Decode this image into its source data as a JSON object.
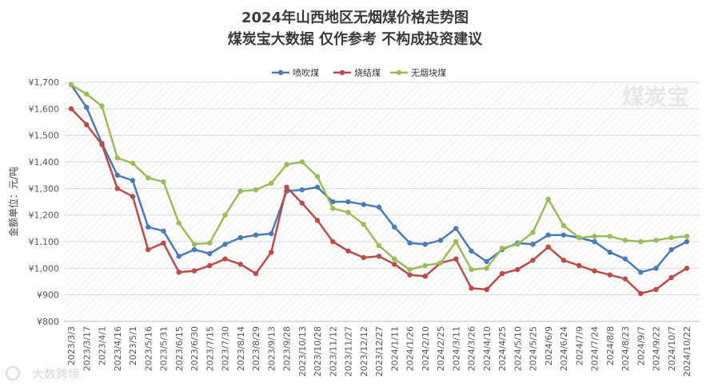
{
  "chart_data": {
    "type": "line",
    "title": "2024年山西地区无烟煤价格走势图",
    "subtitle": "煤炭宝大数据 仅作参考 不构成投资建议",
    "ylabel": "金额单位：元/吨",
    "ylim": [
      800,
      1700
    ],
    "yticks": [
      800,
      900,
      1000,
      1100,
      1200,
      1300,
      1400,
      1500,
      1600,
      1700
    ],
    "ytick_labels": [
      "¥800",
      "¥900",
      "¥1,000",
      "¥1,100",
      "¥1,200",
      "¥1,300",
      "¥1,400",
      "¥1,500",
      "¥1,600",
      "¥1,700"
    ],
    "grid": true,
    "legend_position": "top",
    "categories": [
      "2023/3/3",
      "2023/3/17",
      "2023/4/1",
      "2023/4/16",
      "2023/5/1",
      "2023/5/16",
      "2023/5/31",
      "2023/6/15",
      "2023/6/30",
      "2023/7/15",
      "2023/7/30",
      "2023/8/14",
      "2023/8/29",
      "2023/9/13",
      "2023/9/28",
      "2023/10/13",
      "2023/10/28",
      "2023/11/12",
      "2023/11/27",
      "2023/12/12",
      "2023/12/27",
      "2024/1/11",
      "2024/1/26",
      "2024/2/10",
      "2024/2/25",
      "2024/3/11",
      "2024/3/26",
      "2024/4/10",
      "2024/4/25",
      "2024/5/10",
      "2024/5/25",
      "2024/6/9",
      "2024/6/24",
      "2024/7/9",
      "2024/7/24",
      "2024/8/8",
      "2024/8/23",
      "2024/9/7",
      "2024/9/22",
      "2024/10/7",
      "2024/10/22"
    ],
    "series": [
      {
        "name": "喷吹煤",
        "color": "#4a7ab8",
        "values": [
          1690,
          1605,
          1470,
          1350,
          1330,
          1155,
          1140,
          1045,
          1070,
          1055,
          1090,
          1115,
          1125,
          1130,
          1290,
          1295,
          1305,
          1250,
          1250,
          1240,
          1230,
          1155,
          1095,
          1090,
          1105,
          1150,
          1065,
          1025,
          1070,
          1095,
          1090,
          1125,
          1125,
          1115,
          1100,
          1060,
          1035,
          985,
          1000,
          1070,
          1100
        ]
      },
      {
        "name": "烧结煤",
        "color": "#bd4a48",
        "values": [
          1600,
          1540,
          1465,
          1300,
          1270,
          1070,
          1095,
          985,
          990,
          1010,
          1035,
          1015,
          980,
          1060,
          1305,
          1245,
          1180,
          1100,
          1065,
          1040,
          1045,
          1015,
          975,
          970,
          1020,
          1035,
          925,
          920,
          980,
          995,
          1030,
          1080,
          1030,
          1010,
          990,
          975,
          960,
          905,
          920,
          965,
          1000
        ]
      },
      {
        "name": "无烟块煤",
        "color": "#9bbd57",
        "values": [
          1690,
          1655,
          1610,
          1415,
          1395,
          1340,
          1325,
          1170,
          1090,
          1095,
          1200,
          1290,
          1295,
          1320,
          1390,
          1400,
          1345,
          1225,
          1210,
          1165,
          1085,
          1035,
          995,
          1010,
          1020,
          1100,
          995,
          1000,
          1075,
          1090,
          1135,
          1260,
          1160,
          1115,
          1120,
          1120,
          1105,
          1100,
          1105,
          1115,
          1120
        ]
      }
    ]
  },
  "watermark_brand": "煤炭宝",
  "watermark_footer": "大数跨境"
}
